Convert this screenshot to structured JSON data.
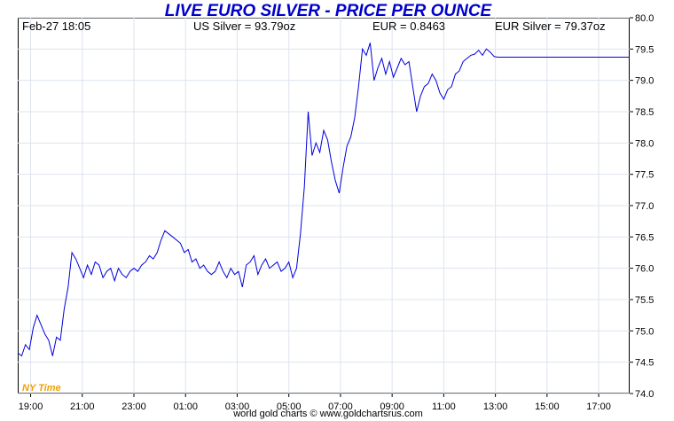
{
  "chart_data": {
    "type": "line",
    "title": "LIVE EURO SILVER - PRICE PER OUNCE",
    "header": {
      "datetime": "Feb-27  18:05",
      "us_silver": "US Silver = 93.79oz",
      "eur_rate": "EUR = 0.8463",
      "eur_silver": "EUR Silver = 79.37oz"
    },
    "timezone_label": "NY Time",
    "footer": "world gold charts © www.goldchartsrus.com",
    "x_tick_labels": [
      "19:00",
      "21:00",
      "23:00",
      "01:00",
      "03:00",
      "05:00",
      "07:00",
      "09:00",
      "11:00",
      "13:00",
      "15:00",
      "17:00"
    ],
    "x_tick_hours": [
      0,
      2,
      4,
      6,
      8,
      10,
      12,
      14,
      16,
      18,
      20,
      22
    ],
    "y_tick_labels": [
      "74.0",
      "74.5",
      "75.0",
      "75.5",
      "76.0",
      "76.5",
      "77.0",
      "77.5",
      "78.0",
      "78.5",
      "79.0",
      "79.5",
      "80.0"
    ],
    "y_ticks": [
      74.0,
      74.5,
      75.0,
      75.5,
      76.0,
      76.5,
      77.0,
      77.5,
      78.0,
      78.5,
      79.0,
      79.5,
      80.0
    ],
    "ylim": [
      74.0,
      80.0
    ],
    "xlim_hours": [
      -0.5,
      23.2
    ],
    "grid": true,
    "line_color": "#0000dd",
    "series": [
      {
        "x_hours": [
          -0.5,
          -0.35,
          -0.2,
          -0.05,
          0.1,
          0.25,
          0.4,
          0.55,
          0.7,
          0.85,
          1.0,
          1.15,
          1.3,
          1.45,
          1.6,
          1.75,
          1.9,
          2.05,
          2.2,
          2.35,
          2.5,
          2.65,
          2.8,
          2.95,
          3.1,
          3.25,
          3.4,
          3.55,
          3.7,
          3.85,
          4.0,
          4.15,
          4.3,
          4.45,
          4.6,
          4.75,
          4.9,
          5.05,
          5.2,
          5.35,
          5.5,
          5.65,
          5.8,
          5.95,
          6.1,
          6.25,
          6.4,
          6.55,
          6.7,
          6.85,
          7.0,
          7.15,
          7.3,
          7.45,
          7.6,
          7.75,
          7.9,
          8.05,
          8.2,
          8.35,
          8.5,
          8.65,
          8.8,
          8.95,
          9.1,
          9.25,
          9.4,
          9.55,
          9.7,
          9.85,
          10.0,
          10.15,
          10.3,
          10.45,
          10.6,
          10.75,
          10.9,
          11.05,
          11.2,
          11.35,
          11.5,
          11.65,
          11.8,
          11.95,
          12.1,
          12.25,
          12.4,
          12.55,
          12.7,
          12.85,
          13.0,
          13.15,
          13.3,
          13.45,
          13.6,
          13.75,
          13.9,
          14.05,
          14.2,
          14.35,
          14.5,
          14.65,
          14.8,
          14.95,
          15.1,
          15.25,
          15.4,
          15.55,
          15.7,
          15.85,
          16.0,
          16.15,
          16.3,
          16.45,
          16.6,
          16.75,
          16.9,
          17.05,
          17.2,
          17.35,
          17.5,
          17.65,
          17.8,
          17.95,
          18.1,
          18.25,
          18.4,
          18.55,
          18.7,
          18.85,
          19.0,
          19.15,
          19.3,
          19.45,
          19.6,
          19.75,
          19.9,
          20.05,
          20.2,
          20.35,
          20.5,
          20.65,
          20.8,
          20.95,
          21.1,
          21.25,
          21.4,
          21.55,
          21.7,
          21.85,
          22.0,
          22.1,
          22.3,
          22.6,
          22.9,
          23.2
        ],
        "values": [
          74.65,
          74.6,
          74.78,
          74.7,
          75.05,
          75.25,
          75.1,
          74.95,
          74.85,
          74.6,
          74.9,
          74.85,
          75.35,
          75.7,
          76.25,
          76.15,
          76.0,
          75.85,
          76.05,
          75.9,
          76.1,
          76.05,
          75.85,
          75.95,
          76.0,
          75.8,
          76.0,
          75.9,
          75.85,
          75.95,
          76.0,
          75.95,
          76.05,
          76.1,
          76.2,
          76.15,
          76.25,
          76.45,
          76.6,
          76.55,
          76.5,
          76.45,
          76.4,
          76.25,
          76.3,
          76.1,
          76.15,
          76.0,
          76.05,
          75.95,
          75.9,
          75.95,
          76.1,
          75.95,
          75.85,
          76.0,
          75.9,
          75.95,
          75.7,
          76.05,
          76.1,
          76.2,
          75.9,
          76.05,
          76.15,
          76.0,
          76.05,
          76.1,
          75.95,
          76.0,
          76.1,
          75.85,
          76.0,
          76.55,
          77.3,
          78.5,
          77.8,
          78.0,
          77.85,
          78.2,
          78.05,
          77.7,
          77.4,
          77.2,
          77.6,
          77.95,
          78.1,
          78.4,
          78.9,
          79.5,
          79.4,
          79.6,
          79.0,
          79.2,
          79.35,
          79.1,
          79.3,
          79.05,
          79.2,
          79.35,
          79.25,
          79.3,
          78.9,
          78.5,
          78.75,
          78.9,
          78.95,
          79.1,
          79.0,
          78.8,
          78.7,
          78.85,
          78.9,
          79.1,
          79.15,
          79.3,
          79.35,
          79.4,
          79.42,
          79.48,
          79.4,
          79.5,
          79.45,
          79.38,
          79.37,
          79.37,
          79.37,
          79.37,
          79.37,
          79.37,
          79.37,
          79.37,
          79.37,
          79.37,
          79.37,
          79.37,
          79.37,
          79.37,
          79.37,
          79.37,
          79.37,
          79.37,
          79.37,
          79.37,
          79.37,
          79.37,
          79.37,
          79.37,
          79.37,
          79.37,
          79.37,
          79.37,
          79.37,
          79.37,
          79.37,
          79.37
        ]
      }
    ]
  }
}
